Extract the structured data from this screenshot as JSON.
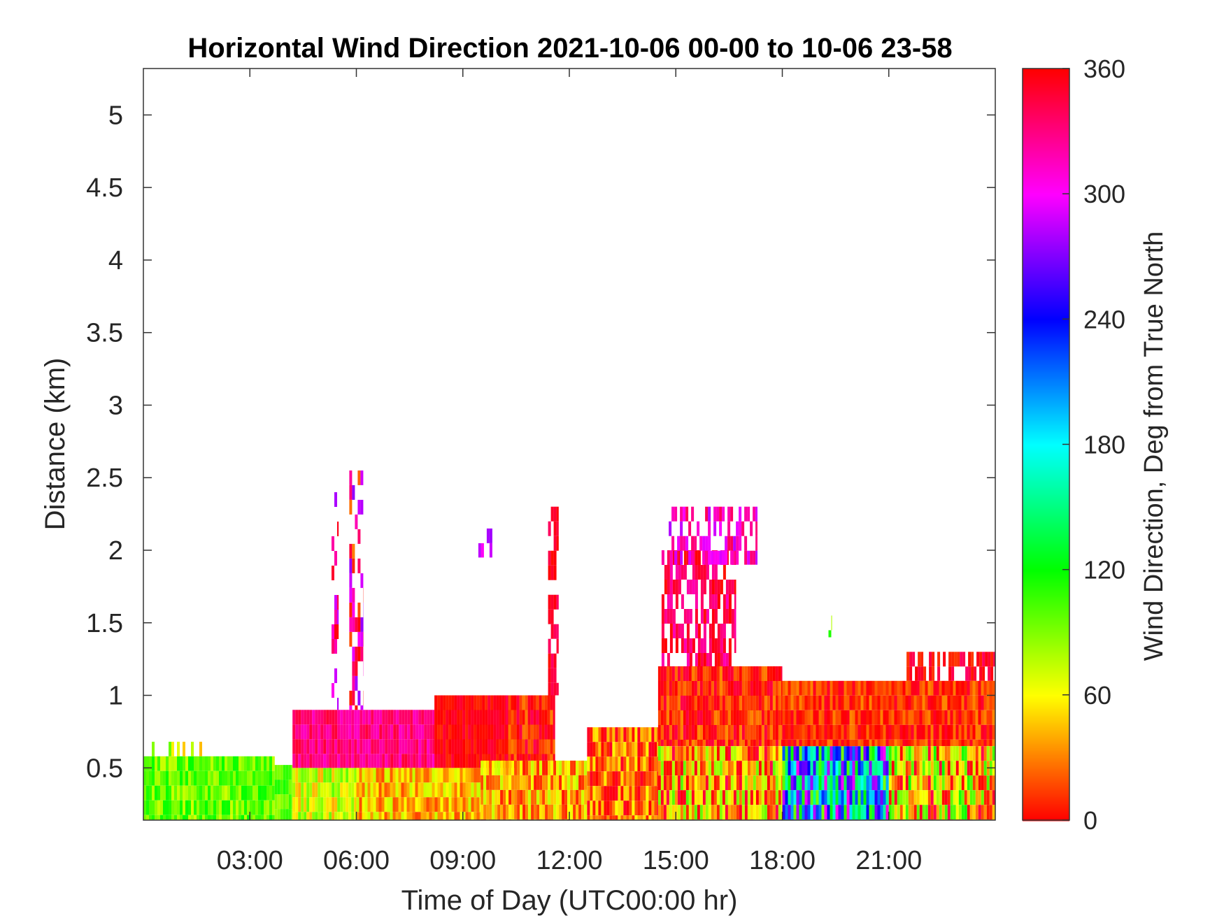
{
  "chart_data": {
    "type": "heatmap",
    "title": "Horizontal Wind Direction 2021-10-06 00-00 to 10-06 23-58",
    "xlabel": "Time of Day (UTC00:00 hr)",
    "ylabel": "Distance (km)",
    "xlim_hours": [
      0,
      24
    ],
    "ylim_km": [
      0.14,
      5.32
    ],
    "x_ticks": [
      {
        "hour": 3,
        "label": "03:00"
      },
      {
        "hour": 6,
        "label": "06:00"
      },
      {
        "hour": 9,
        "label": "09:00"
      },
      {
        "hour": 12,
        "label": "12:00"
      },
      {
        "hour": 15,
        "label": "15:00"
      },
      {
        "hour": 18,
        "label": "18:00"
      },
      {
        "hour": 21,
        "label": "21:00"
      }
    ],
    "y_ticks": [
      {
        "value": 0.5,
        "label": "0.5"
      },
      {
        "value": 1,
        "label": "1"
      },
      {
        "value": 1.5,
        "label": "1.5"
      },
      {
        "value": 2,
        "label": "2"
      },
      {
        "value": 2.5,
        "label": "2.5"
      },
      {
        "value": 3,
        "label": "3"
      },
      {
        "value": 3.5,
        "label": "3.5"
      },
      {
        "value": 4,
        "label": "4"
      },
      {
        "value": 4.5,
        "label": "4.5"
      },
      {
        "value": 5,
        "label": "5"
      }
    ],
    "colorbar": {
      "label": "Wind Direction, Deg from True North",
      "range": [
        0,
        360
      ],
      "ticks": [
        {
          "value": 0,
          "label": "0"
        },
        {
          "value": 60,
          "label": "60"
        },
        {
          "value": 120,
          "label": "120"
        },
        {
          "value": 180,
          "label": "180"
        },
        {
          "value": 240,
          "label": "240"
        },
        {
          "value": 300,
          "label": "300"
        },
        {
          "value": 360,
          "label": "360"
        }
      ],
      "colormap": "hsv"
    },
    "data_regions": [
      {
        "x": [
          0.0,
          3.7
        ],
        "y": [
          0.14,
          0.58
        ],
        "deg": 95,
        "jitter": 25
      },
      {
        "x": [
          0.0,
          1.7
        ],
        "y": [
          0.58,
          0.68
        ],
        "deg": 70,
        "jitter": 30,
        "density": 0.3
      },
      {
        "x": [
          3.7,
          4.2
        ],
        "y": [
          0.14,
          0.52
        ],
        "deg": 100,
        "jitter": 20
      },
      {
        "x": [
          4.2,
          6.0
        ],
        "y": [
          0.14,
          0.5
        ],
        "deg": 70,
        "jitter": 30
      },
      {
        "x": [
          4.2,
          8.2
        ],
        "y": [
          0.5,
          0.9
        ],
        "deg": 330,
        "jitter": 18
      },
      {
        "x": [
          6.0,
          9.5
        ],
        "y": [
          0.14,
          0.5
        ],
        "deg": 45,
        "jitter": 30
      },
      {
        "x": [
          8.2,
          10.5
        ],
        "y": [
          0.5,
          1.0
        ],
        "deg": 358,
        "jitter": 12
      },
      {
        "x": [
          9.5,
          12.5
        ],
        "y": [
          0.14,
          0.55
        ],
        "deg": 40,
        "jitter": 35
      },
      {
        "x": [
          10.2,
          11.6
        ],
        "y": [
          0.55,
          1.0
        ],
        "deg": 5,
        "jitter": 25
      },
      {
        "x": [
          12.5,
          14.5
        ],
        "y": [
          0.14,
          0.78
        ],
        "deg": 25,
        "jitter": 35
      },
      {
        "x": [
          14.5,
          18.0
        ],
        "y": [
          0.14,
          0.65
        ],
        "deg": 40,
        "jitter": 60
      },
      {
        "x": [
          14.5,
          18.0
        ],
        "y": [
          0.65,
          1.2
        ],
        "deg": 8,
        "jitter": 25
      },
      {
        "x": [
          18.0,
          21.0
        ],
        "y": [
          0.14,
          0.65
        ],
        "deg": 200,
        "jitter": 110
      },
      {
        "x": [
          18.0,
          24.0
        ],
        "y": [
          0.65,
          1.1
        ],
        "deg": 10,
        "jitter": 22
      },
      {
        "x": [
          21.0,
          24.0
        ],
        "y": [
          0.14,
          0.65
        ],
        "deg": 50,
        "jitter": 70
      },
      {
        "x": [
          21.5,
          24.0
        ],
        "y": [
          1.1,
          1.3
        ],
        "deg": 355,
        "jitter": 20,
        "density": 0.6
      },
      {
        "x": [
          5.3,
          5.5
        ],
        "y": [
          0.9,
          2.4
        ],
        "deg": 320,
        "jitter": 40,
        "density": 0.55
      },
      {
        "x": [
          5.8,
          6.2
        ],
        "y": [
          0.9,
          2.55
        ],
        "deg": 330,
        "jitter": 60,
        "density": 0.55
      },
      {
        "x": [
          11.4,
          11.7
        ],
        "y": [
          1.0,
          2.3
        ],
        "deg": 350,
        "jitter": 15,
        "density": 0.7
      },
      {
        "x": [
          14.6,
          16.7
        ],
        "y": [
          1.2,
          2.0
        ],
        "deg": 340,
        "jitter": 25,
        "density": 0.65
      },
      {
        "x": [
          14.8,
          17.3
        ],
        "y": [
          1.9,
          2.3
        ],
        "deg": 310,
        "jitter": 30,
        "density": 0.55
      },
      {
        "x": [
          9.2,
          10.0
        ],
        "y": [
          1.95,
          2.15
        ],
        "deg": 285,
        "jitter": 20,
        "density": 0.35
      },
      {
        "x": [
          19.3,
          19.4
        ],
        "y": [
          1.4,
          1.55
        ],
        "deg": 100,
        "jitter": 30,
        "density": 0.6
      }
    ]
  }
}
